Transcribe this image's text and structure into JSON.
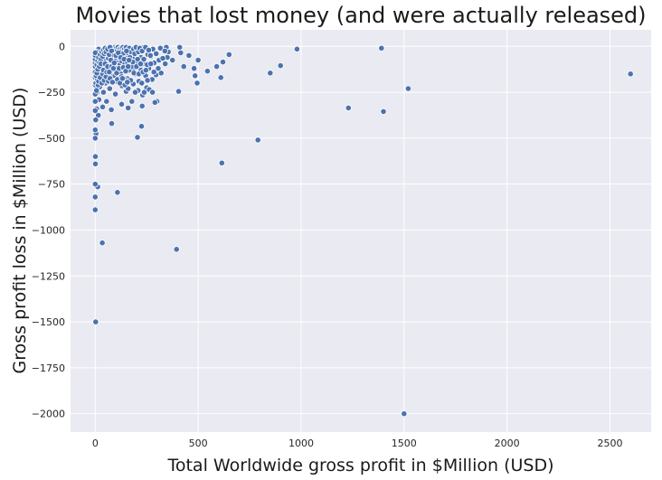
{
  "chart_data": {
    "type": "scatter",
    "title": "Movies that lost money (and were actually released)",
    "xlabel": "Total Worldwide gross profit in $Million (USD)",
    "ylabel": "Gross profit loss in $Million (USD)",
    "xlim": [
      -120,
      2700
    ],
    "ylim": [
      -2100,
      90
    ],
    "x_ticks": [
      0,
      500,
      1000,
      1500,
      2000,
      2500
    ],
    "y_ticks": [
      0,
      -250,
      -500,
      -750,
      -1000,
      -1250,
      -1500,
      -1750,
      -2000
    ],
    "grid": true,
    "point_color": "#4c72b0",
    "background_color": "#eaeaf2",
    "points": [
      [
        2,
        -1500
      ],
      [
        1500,
        -2000
      ],
      [
        2600,
        -150
      ],
      [
        1520,
        -230
      ],
      [
        1390,
        -10
      ],
      [
        1400,
        -355
      ],
      [
        1230,
        -335
      ],
      [
        980,
        -15
      ],
      [
        900,
        -105
      ],
      [
        850,
        -145
      ],
      [
        790,
        -510
      ],
      [
        650,
        -45
      ],
      [
        620,
        -85
      ],
      [
        610,
        -170
      ],
      [
        615,
        -635
      ],
      [
        590,
        -110
      ],
      [
        545,
        -135
      ],
      [
        500,
        -75
      ],
      [
        495,
        -200
      ],
      [
        485,
        -160
      ],
      [
        480,
        -120
      ],
      [
        455,
        -50
      ],
      [
        430,
        -110
      ],
      [
        415,
        -35
      ],
      [
        410,
        -5
      ],
      [
        405,
        -245
      ],
      [
        395,
        -1105
      ],
      [
        375,
        -75
      ],
      [
        355,
        -30
      ],
      [
        345,
        -5
      ],
      [
        350,
        -60
      ],
      [
        340,
        -95
      ],
      [
        320,
        -145
      ],
      [
        310,
        -75
      ],
      [
        300,
        -300
      ],
      [
        295,
        -155
      ],
      [
        290,
        -305
      ],
      [
        285,
        -140
      ],
      [
        280,
        -15
      ],
      [
        270,
        -55
      ],
      [
        260,
        -120
      ],
      [
        255,
        -45
      ],
      [
        250,
        -225
      ],
      [
        245,
        -160
      ],
      [
        240,
        -95
      ],
      [
        235,
        -5
      ],
      [
        230,
        -265
      ],
      [
        228,
        -325
      ],
      [
        225,
        -435
      ],
      [
        222,
        -60
      ],
      [
        218,
        -110
      ],
      [
        212,
        -190
      ],
      [
        208,
        -240
      ],
      [
        205,
        -495
      ],
      [
        200,
        -25
      ],
      [
        195,
        -150
      ],
      [
        190,
        -75
      ],
      [
        185,
        -205
      ],
      [
        182,
        -125
      ],
      [
        178,
        -300
      ],
      [
        172,
        -55
      ],
      [
        168,
        -15
      ],
      [
        165,
        -95
      ],
      [
        160,
        -335
      ],
      [
        155,
        -175
      ],
      [
        150,
        -245
      ],
      [
        145,
        -40
      ],
      [
        140,
        -130
      ],
      [
        135,
        -85
      ],
      [
        130,
        -215
      ],
      [
        128,
        -315
      ],
      [
        124,
        -20
      ],
      [
        120,
        -65
      ],
      [
        115,
        -155
      ],
      [
        112,
        -110
      ],
      [
        108,
        -795
      ],
      [
        105,
        -30
      ],
      [
        100,
        -190
      ],
      [
        98,
        -260
      ],
      [
        95,
        -75
      ],
      [
        92,
        -140
      ],
      [
        88,
        -45
      ],
      [
        84,
        -10
      ],
      [
        80,
        -420
      ],
      [
        78,
        -345
      ],
      [
        75,
        -100
      ],
      [
        72,
        -60
      ],
      [
        70,
        -230
      ],
      [
        68,
        -20
      ],
      [
        65,
        -170
      ],
      [
        62,
        -120
      ],
      [
        60,
        -85
      ],
      [
        58,
        -45
      ],
      [
        55,
        -300
      ],
      [
        52,
        -15
      ],
      [
        50,
        -200
      ],
      [
        48,
        -150
      ],
      [
        45,
        -60
      ],
      [
        42,
        -110
      ],
      [
        40,
        -250
      ],
      [
        38,
        -25
      ],
      [
        36,
        -330
      ],
      [
        34,
        -1070
      ],
      [
        32,
        -80
      ],
      [
        30,
        -180
      ],
      [
        28,
        -40
      ],
      [
        26,
        -135
      ],
      [
        24,
        -95
      ],
      [
        22,
        -220
      ],
      [
        20,
        -60
      ],
      [
        18,
        -290
      ],
      [
        16,
        -15
      ],
      [
        15,
        -375
      ],
      [
        14,
        -160
      ],
      [
        12,
        -765
      ],
      [
        11,
        -110
      ],
      [
        10,
        -50
      ],
      [
        9,
        -250
      ],
      [
        8,
        -190
      ],
      [
        7,
        -340
      ],
      [
        6,
        -85
      ],
      [
        5,
        -30
      ],
      [
        4,
        -475
      ],
      [
        3,
        -130
      ],
      [
        2,
        -400
      ],
      [
        1,
        -640
      ],
      [
        1,
        -600
      ],
      [
        0,
        -750
      ],
      [
        0,
        -820
      ],
      [
        0,
        -890
      ],
      [
        0,
        -500
      ],
      [
        0,
        -455
      ],
      [
        0,
        -350
      ],
      [
        0,
        -300
      ],
      [
        0,
        -260
      ],
      [
        0,
        -210
      ],
      [
        0,
        -170
      ],
      [
        0,
        -140
      ],
      [
        0,
        -110
      ],
      [
        0,
        -90
      ],
      [
        0,
        -70
      ],
      [
        0,
        -50
      ],
      [
        0,
        -35
      ],
      [
        3,
        -200
      ],
      [
        6,
        -240
      ],
      [
        10,
        -180
      ],
      [
        14,
        -210
      ],
      [
        18,
        -130
      ],
      [
        22,
        -150
      ],
      [
        26,
        -100
      ],
      [
        30,
        -120
      ],
      [
        34,
        -70
      ],
      [
        38,
        -90
      ],
      [
        42,
        -55
      ],
      [
        46,
        -75
      ],
      [
        50,
        -35
      ],
      [
        54,
        -50
      ],
      [
        58,
        -25
      ],
      [
        62,
        -40
      ],
      [
        66,
        -10
      ],
      [
        70,
        -30
      ],
      [
        74,
        -20
      ],
      [
        78,
        -5
      ],
      [
        82,
        -40
      ],
      [
        86,
        -25
      ],
      [
        90,
        -15
      ],
      [
        94,
        -5
      ],
      [
        98,
        -30
      ],
      [
        102,
        -10
      ],
      [
        106,
        -20
      ],
      [
        110,
        -5
      ],
      [
        114,
        -35
      ],
      [
        118,
        -15
      ],
      [
        122,
        -45
      ],
      [
        126,
        -10
      ],
      [
        130,
        -25
      ],
      [
        134,
        -5
      ],
      [
        138,
        -55
      ],
      [
        142,
        -15
      ],
      [
        146,
        -30
      ],
      [
        150,
        -5
      ],
      [
        154,
        -70
      ],
      [
        158,
        -20
      ],
      [
        162,
        -45
      ],
      [
        166,
        -10
      ],
      [
        170,
        -85
      ],
      [
        174,
        -30
      ],
      [
        180,
        -60
      ],
      [
        186,
        -15
      ],
      [
        192,
        -40
      ],
      [
        198,
        -5
      ],
      [
        204,
        -90
      ],
      [
        210,
        -30
      ],
      [
        216,
        -10
      ],
      [
        222,
        -130
      ],
      [
        228,
        -25
      ],
      [
        236,
        -70
      ],
      [
        244,
        -5
      ],
      [
        252,
        -100
      ],
      [
        260,
        -20
      ],
      [
        268,
        -50
      ],
      [
        276,
        -180
      ],
      [
        286,
        -90
      ],
      [
        296,
        -40
      ],
      [
        306,
        -120
      ],
      [
        316,
        -10
      ],
      [
        328,
        -65
      ],
      [
        338,
        -25
      ],
      [
        8,
        -100
      ],
      [
        12,
        -80
      ],
      [
        16,
        -60
      ],
      [
        20,
        -90
      ],
      [
        24,
        -45
      ],
      [
        28,
        -70
      ],
      [
        32,
        -30
      ],
      [
        36,
        -55
      ],
      [
        40,
        -20
      ],
      [
        44,
        -40
      ],
      [
        48,
        -10
      ],
      [
        52,
        -30
      ],
      [
        56,
        -100
      ],
      [
        60,
        -15
      ],
      [
        64,
        -65
      ],
      [
        68,
        -45
      ],
      [
        72,
        -5
      ],
      [
        76,
        -130
      ],
      [
        80,
        -25
      ],
      [
        84,
        -75
      ],
      [
        88,
        -160
      ],
      [
        92,
        -50
      ],
      [
        96,
        -95
      ],
      [
        100,
        -120
      ],
      [
        104,
        -70
      ],
      [
        108,
        -45
      ],
      [
        112,
        -90
      ],
      [
        116,
        -60
      ],
      [
        120,
        -100
      ],
      [
        124,
        -150
      ],
      [
        128,
        -80
      ],
      [
        132,
        -115
      ],
      [
        136,
        -40
      ],
      [
        140,
        -175
      ],
      [
        144,
        -95
      ],
      [
        148,
        -65
      ],
      [
        152,
        -115
      ],
      [
        156,
        -85
      ],
      [
        160,
        -230
      ],
      [
        164,
        -130
      ],
      [
        168,
        -60
      ],
      [
        172,
        -185
      ],
      [
        176,
        -110
      ],
      [
        182,
        -85
      ],
      [
        188,
        -145
      ],
      [
        194,
        -250
      ],
      [
        200,
        -110
      ],
      [
        206,
        -70
      ],
      [
        212,
        -150
      ],
      [
        220,
        -95
      ],
      [
        226,
        -200
      ],
      [
        232,
        -140
      ],
      [
        238,
        -250
      ],
      [
        246,
        -130
      ],
      [
        254,
        -185
      ],
      [
        262,
        -235
      ],
      [
        270,
        -95
      ],
      [
        278,
        -250
      ],
      [
        4,
        -160
      ],
      [
        8,
        -145
      ],
      [
        12,
        -125
      ],
      [
        16,
        -190
      ],
      [
        20,
        -110
      ],
      [
        24,
        -170
      ],
      [
        28,
        -95
      ],
      [
        32,
        -200
      ],
      [
        36,
        -150
      ],
      [
        40,
        -130
      ],
      [
        44,
        -185
      ],
      [
        48,
        -95
      ],
      [
        52,
        -165
      ],
      [
        56,
        -140
      ],
      [
        60,
        -110
      ],
      [
        64,
        -190
      ],
      [
        68,
        -140
      ],
      [
        72,
        -175
      ],
      [
        76,
        -75
      ],
      [
        80,
        -110
      ],
      [
        84,
        -195
      ],
      [
        88,
        -120
      ],
      [
        92,
        -90
      ],
      [
        96,
        -160
      ],
      [
        100,
        -50
      ],
      [
        104,
        -145
      ],
      [
        108,
        -180
      ],
      [
        112,
        -35
      ],
      [
        116,
        -120
      ],
      [
        120,
        -200
      ],
      [
        124,
        -60
      ],
      [
        128,
        -165
      ],
      [
        132,
        -175
      ],
      [
        136,
        -115
      ],
      [
        140,
        -70
      ],
      [
        144,
        -210
      ],
      [
        148,
        -135
      ],
      [
        152,
        -25
      ],
      [
        156,
        -195
      ],
      [
        160,
        -110
      ],
      [
        164,
        -75
      ]
    ]
  }
}
